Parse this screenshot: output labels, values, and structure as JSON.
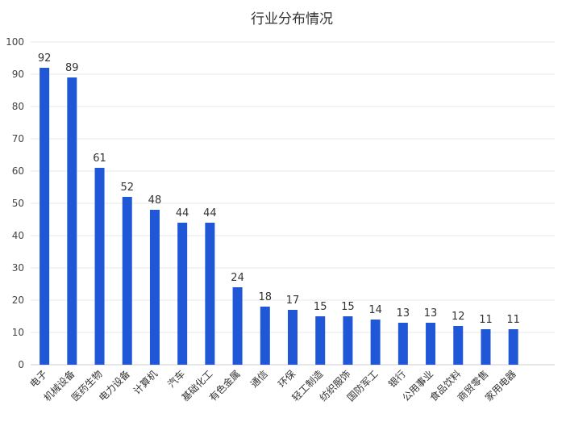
{
  "chart_data": {
    "type": "bar",
    "title": "行业分布情况",
    "xlabel": "",
    "ylabel": "",
    "ylim": [
      0,
      100
    ],
    "yticks": [
      0,
      10,
      20,
      30,
      40,
      50,
      60,
      70,
      80,
      90,
      100
    ],
    "grid": true,
    "bar_color": "#1f57d6",
    "categories": [
      "电子",
      "机械设备",
      "医药生物",
      "电力设备",
      "计算机",
      "汽车",
      "基础化工",
      "有色金属",
      "通信",
      "环保",
      "轻工制造",
      "纺织服饰",
      "国防军工",
      "银行",
      "公用事业",
      "食品饮料",
      "商贸零售",
      "家用电器"
    ],
    "values": [
      92,
      89,
      61,
      52,
      48,
      44,
      44,
      24,
      18,
      17,
      15,
      15,
      14,
      13,
      13,
      12,
      11,
      11
    ]
  }
}
